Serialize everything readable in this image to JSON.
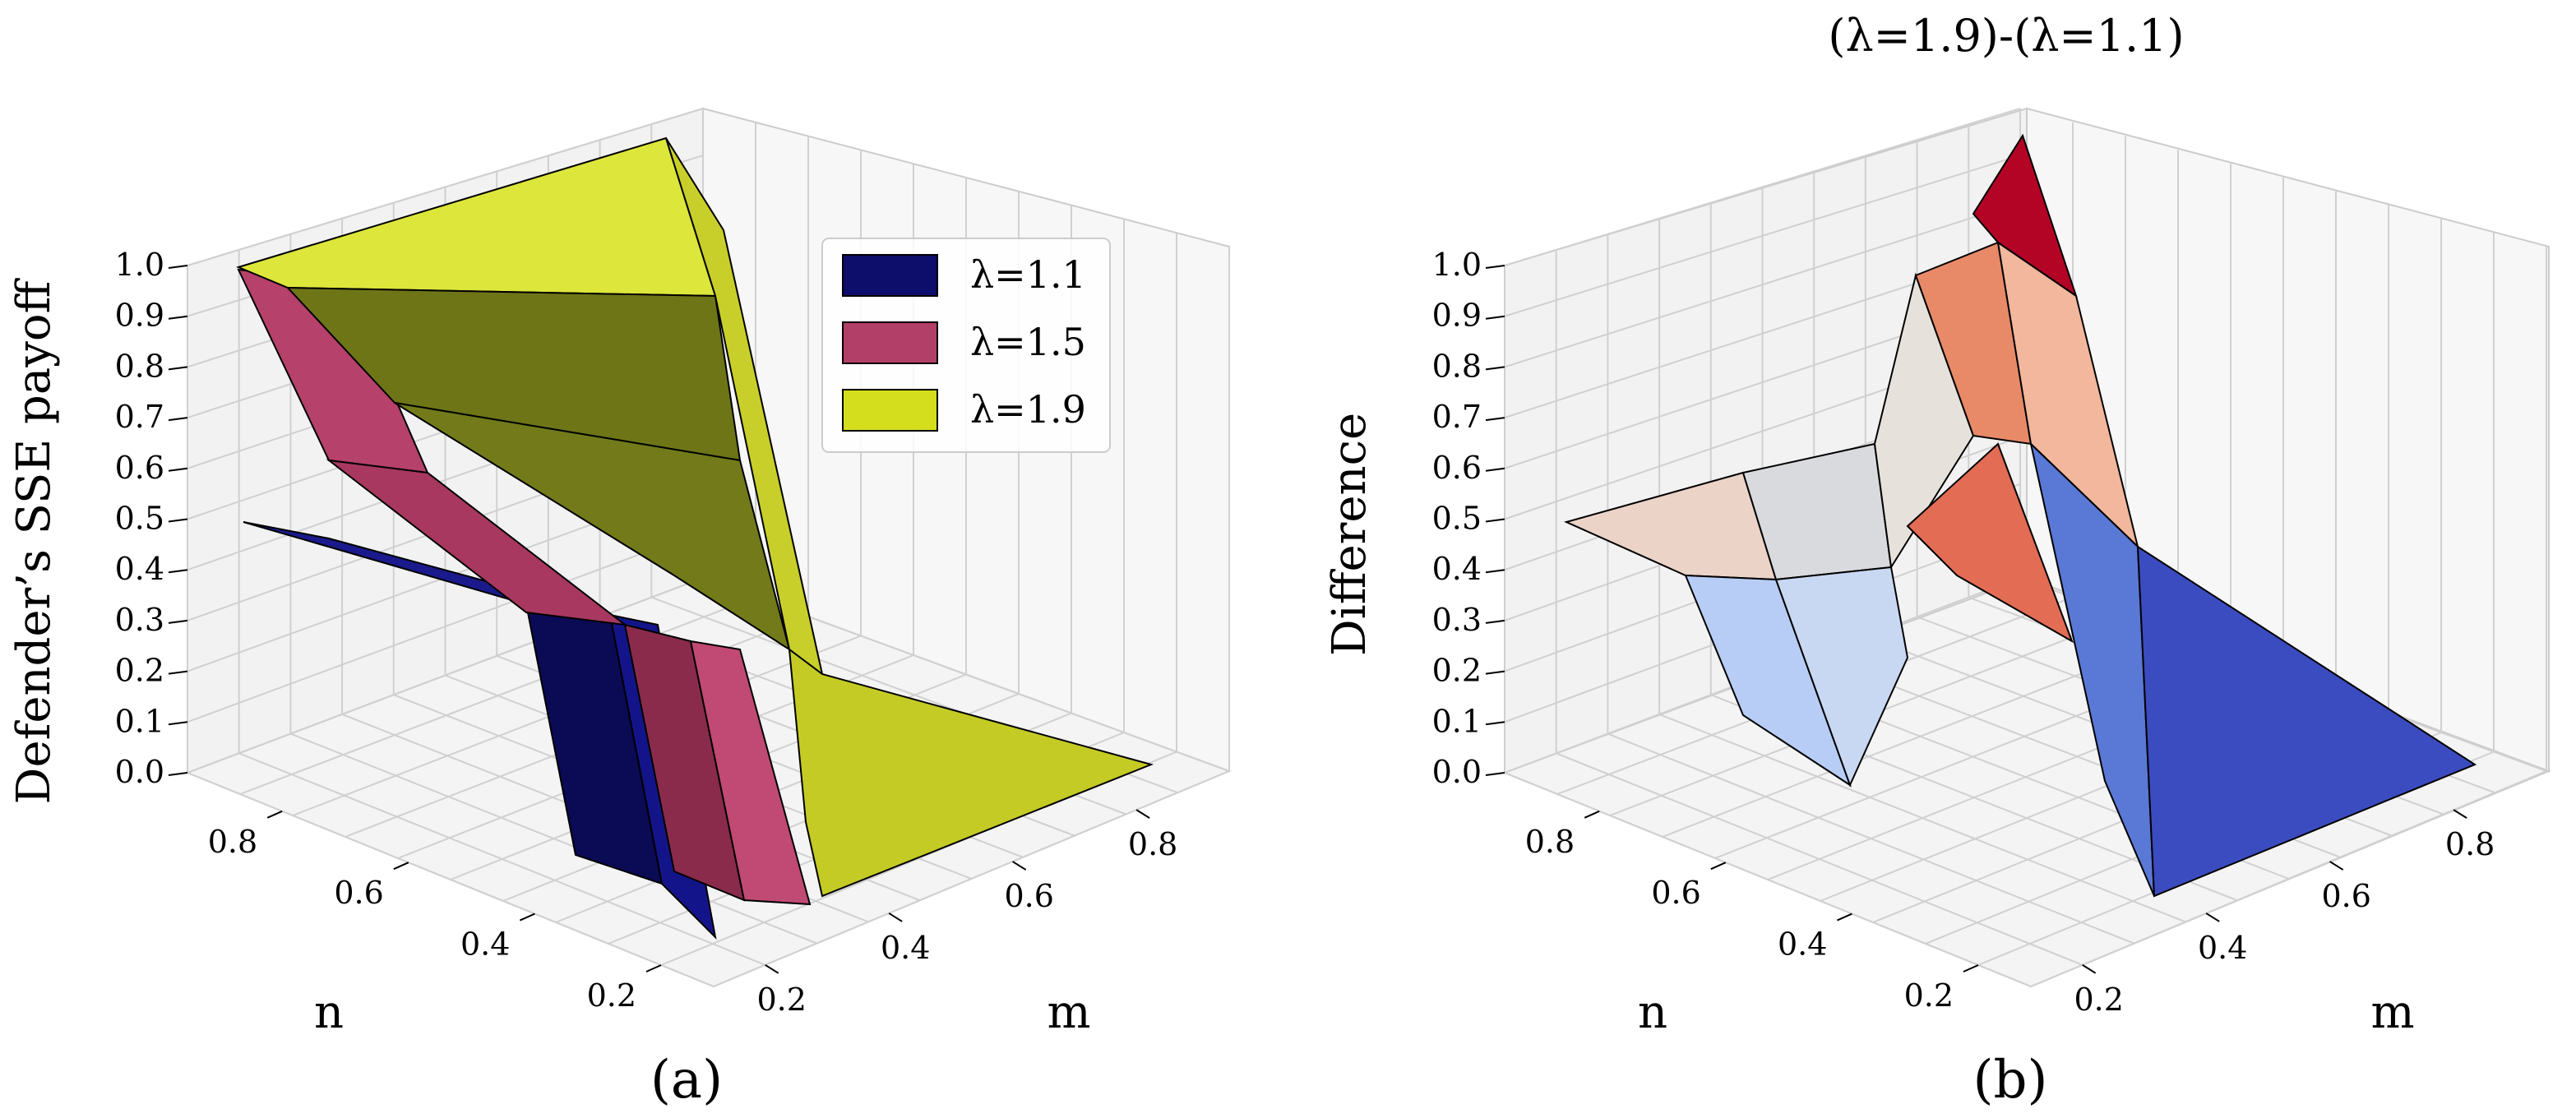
{
  "chart_data": [
    {
      "id": "a",
      "type": "surface3d",
      "caption": "(a)",
      "title": "",
      "xlabel": "m",
      "ylabel": "n",
      "zlabel": "Defender’s SSE payoff",
      "x_ticks": [
        "0.2",
        "0.4",
        "0.6",
        "0.8"
      ],
      "y_ticks": [
        "0.8",
        "0.6",
        "0.4",
        "0.2"
      ],
      "z_ticks": [
        "0.0",
        "0.1",
        "0.2",
        "0.3",
        "0.4",
        "0.5",
        "0.6",
        "0.7",
        "0.8",
        "0.9",
        "1.0"
      ],
      "zlim": [
        0,
        1
      ],
      "grid": true,
      "legend_position": "top-right",
      "series": [
        {
          "name": "λ=1.1",
          "color": "#0d0d6b",
          "edge": "#000000",
          "description": "0.5 plateau for small m, steep drop to 0 near m~0.35"
        },
        {
          "name": "λ=1.5",
          "color": "#b23f67",
          "edge": "#000000",
          "description": "~0.95 at large n, ~0.5 at small n for small m, drop to 0 near m~0.45"
        },
        {
          "name": "λ=1.9",
          "color": "#d4de1c",
          "edge": "#000000",
          "description": "~1.0 plateau for small m, drop to 0 near m~0.55"
        }
      ]
    },
    {
      "id": "b",
      "type": "surface3d",
      "caption": "(b)",
      "title": "(λ=1.9)-(λ=1.1)",
      "xlabel": "m",
      "ylabel": "n",
      "zlabel": "Difference",
      "x_ticks": [
        "0.2",
        "0.4",
        "0.6",
        "0.8"
      ],
      "y_ticks": [
        "0.8",
        "0.6",
        "0.4",
        "0.2"
      ],
      "z_ticks": [
        "0.0",
        "0.1",
        "0.2",
        "0.3",
        "0.4",
        "0.5",
        "0.6",
        "0.7",
        "0.8",
        "0.9",
        "1.0"
      ],
      "zlim": [
        0,
        1
      ],
      "grid": true,
      "colormap": "coolwarm",
      "description": "difference surface peaking ~1.0 near m~0.45,n~0.2; ~0.5 plateau at large n; ~0 for m>0.6"
    }
  ]
}
